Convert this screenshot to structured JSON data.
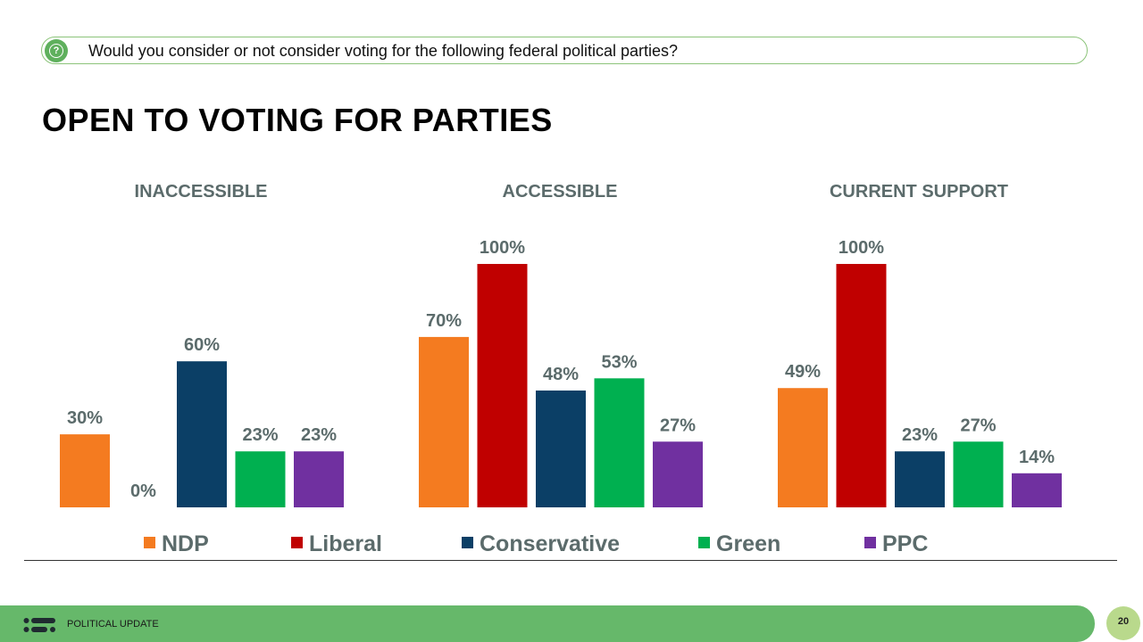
{
  "question": {
    "icon": "question-icon",
    "icon_glyph": "?",
    "text": "Would you consider or not consider voting for the following federal political parties?"
  },
  "title": "OPEN TO VOTING FOR PARTIES",
  "chart_data": {
    "type": "bar",
    "groups": [
      "INACCESSIBLE",
      "ACCESSIBLE",
      "CURRENT SUPPORT"
    ],
    "ylim": [
      0,
      100
    ],
    "grid": false,
    "legend_position": "bottom",
    "series": [
      {
        "name": "NDP",
        "color": "#f47b20",
        "values": [
          30,
          70,
          49
        ]
      },
      {
        "name": "Liberal",
        "color": "#c00000",
        "values": [
          0,
          100,
          100
        ]
      },
      {
        "name": "Conservative",
        "color": "#0b3f66",
        "values": [
          60,
          48,
          23
        ]
      },
      {
        "name": "Green",
        "color": "#00b050",
        "values": [
          23,
          53,
          27
        ]
      },
      {
        "name": "PPC",
        "color": "#7030a0",
        "values": [
          23,
          27,
          14
        ]
      }
    ],
    "label_suffix": "%",
    "label_color": "#5b6b6b",
    "group_label_color": "#5b6b6b",
    "legend_text_color": "#5b6b6b"
  },
  "footer": {
    "logo": "abacus-data-logo",
    "label": "POLITICAL UPDATE",
    "page_number": "20",
    "band_color": "#66b86a"
  }
}
